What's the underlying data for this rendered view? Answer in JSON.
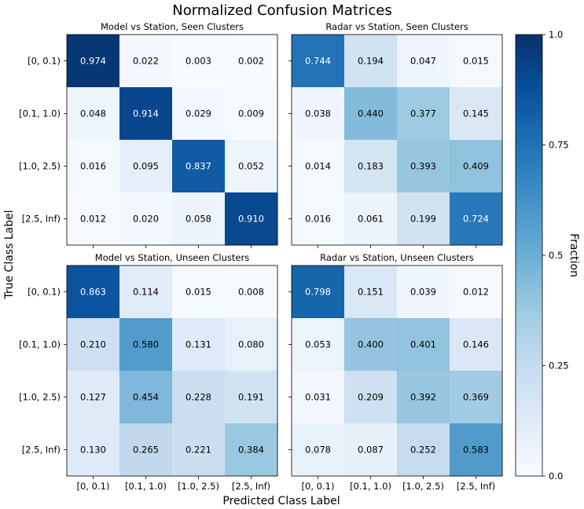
{
  "chart_data": {
    "type": "heatmap",
    "title": "Normalized Confusion Matrices",
    "xlabel": "Predicted Class Label",
    "ylabel": "True Class Label",
    "classes": [
      "[0, 0.1)",
      "[0.1, 1.0)",
      "[1.0, 2.5)",
      "[2.5, Inf)"
    ],
    "colorbar": {
      "label": "Fraction",
      "range": [
        0.0,
        1.0
      ],
      "ticks": [
        0.0,
        0.25,
        0.5,
        0.75,
        1.0
      ],
      "tick_labels": [
        "0.0",
        "0.25",
        "0.5",
        "0.75",
        "1.0"
      ],
      "colormap": "Blues"
    },
    "panels": [
      {
        "title": "Model vs Station, Seen Clusters",
        "matrix": [
          [
            "0.974",
            "0.022",
            "0.003",
            "0.002"
          ],
          [
            "0.048",
            "0.914",
            "0.029",
            "0.009"
          ],
          [
            "0.016",
            "0.095",
            "0.837",
            "0.052"
          ],
          [
            "0.012",
            "0.020",
            "0.058",
            "0.910"
          ]
        ]
      },
      {
        "title": "Radar vs Station, Seen Clusters",
        "matrix": [
          [
            "0.744",
            "0.194",
            "0.047",
            "0.015"
          ],
          [
            "0.038",
            "0.440",
            "0.377",
            "0.145"
          ],
          [
            "0.014",
            "0.183",
            "0.393",
            "0.409"
          ],
          [
            "0.016",
            "0.061",
            "0.199",
            "0.724"
          ]
        ]
      },
      {
        "title": "Model vs Station, Unseen Clusters",
        "matrix": [
          [
            "0.863",
            "0.114",
            "0.015",
            "0.008"
          ],
          [
            "0.210",
            "0.580",
            "0.131",
            "0.080"
          ],
          [
            "0.127",
            "0.454",
            "0.228",
            "0.191"
          ],
          [
            "0.130",
            "0.265",
            "0.221",
            "0.384"
          ]
        ]
      },
      {
        "title": "Radar vs Station, Unseen Clusters",
        "matrix": [
          [
            "0.798",
            "0.151",
            "0.039",
            "0.012"
          ],
          [
            "0.053",
            "0.400",
            "0.401",
            "0.146"
          ],
          [
            "0.031",
            "0.209",
            "0.392",
            "0.369"
          ],
          [
            "0.078",
            "0.087",
            "0.252",
            "0.583"
          ]
        ]
      }
    ]
  }
}
